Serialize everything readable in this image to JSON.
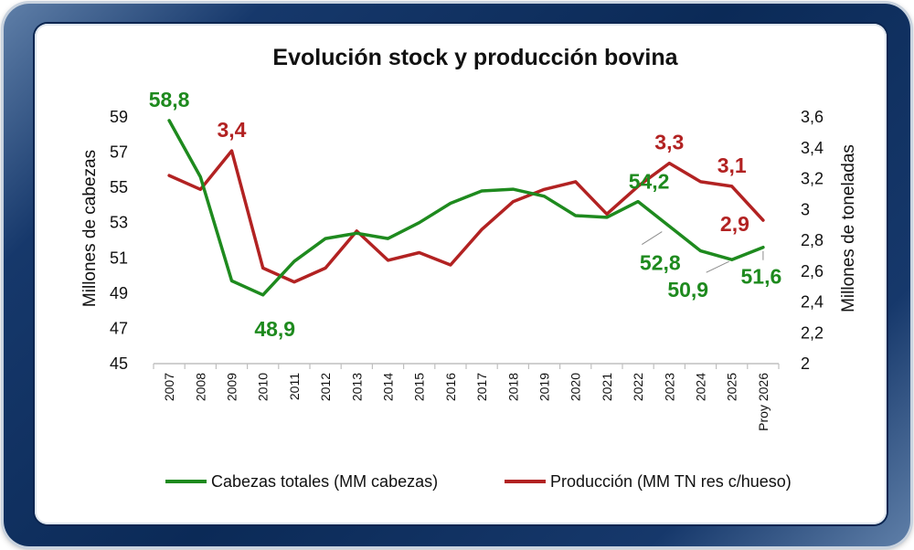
{
  "chart_data": {
    "type": "line",
    "title": "Evolución stock y producción bovina",
    "categories": [
      "2007",
      "2008",
      "2009",
      "2010",
      "2011",
      "2012",
      "2013",
      "2014",
      "2015",
      "2016",
      "2017",
      "2018",
      "2019",
      "2020",
      "2021",
      "2022",
      "2023",
      "2024",
      "2025",
      "Proy 2026"
    ],
    "ylabel_left": "Millones de cabezas",
    "ylabel_right": "Millones de toneladas",
    "ylim_left": [
      45,
      59
    ],
    "yticks_left": [
      "45",
      "47",
      "49",
      "51",
      "53",
      "55",
      "57",
      "59"
    ],
    "ylim_right": [
      2,
      3.6
    ],
    "yticks_right": [
      "2",
      "2,2",
      "2,4",
      "2,6",
      "2,8",
      "3",
      "3,2",
      "3,4",
      "3,6"
    ],
    "grid": false,
    "legend_position": "bottom",
    "series": [
      {
        "name": "Cabezas totales (MM cabezas)",
        "axis": "left",
        "color": "#1e8a1e",
        "values": [
          58.8,
          55.6,
          49.7,
          48.9,
          50.8,
          52.1,
          52.4,
          52.1,
          53.0,
          54.1,
          54.8,
          54.9,
          54.5,
          53.4,
          53.3,
          54.2,
          52.8,
          51.4,
          50.9,
          51.6
        ]
      },
      {
        "name": "Producción (MM TN res c/hueso)",
        "axis": "right",
        "color": "#b22222",
        "values": [
          3.22,
          3.13,
          3.38,
          2.62,
          2.53,
          2.62,
          2.86,
          2.67,
          2.72,
          2.64,
          2.87,
          3.05,
          3.13,
          3.18,
          2.97,
          3.15,
          3.3,
          3.18,
          3.15,
          2.93
        ]
      }
    ],
    "data_labels": [
      {
        "series": 0,
        "index": 0,
        "text": "58,8"
      },
      {
        "series": 0,
        "index": 3,
        "text": "48,9"
      },
      {
        "series": 0,
        "index": 15,
        "text": "54,2"
      },
      {
        "series": 0,
        "index": 16,
        "text": "52,8"
      },
      {
        "series": 0,
        "index": 18,
        "text": "50,9"
      },
      {
        "series": 0,
        "index": 19,
        "text": "51,6"
      },
      {
        "series": 1,
        "index": 2,
        "text": "3,4"
      },
      {
        "series": 1,
        "index": 16,
        "text": "3,3"
      },
      {
        "series": 1,
        "index": 18,
        "text": "3,1"
      },
      {
        "series": 1,
        "index": 19,
        "text": "2,9"
      }
    ]
  }
}
